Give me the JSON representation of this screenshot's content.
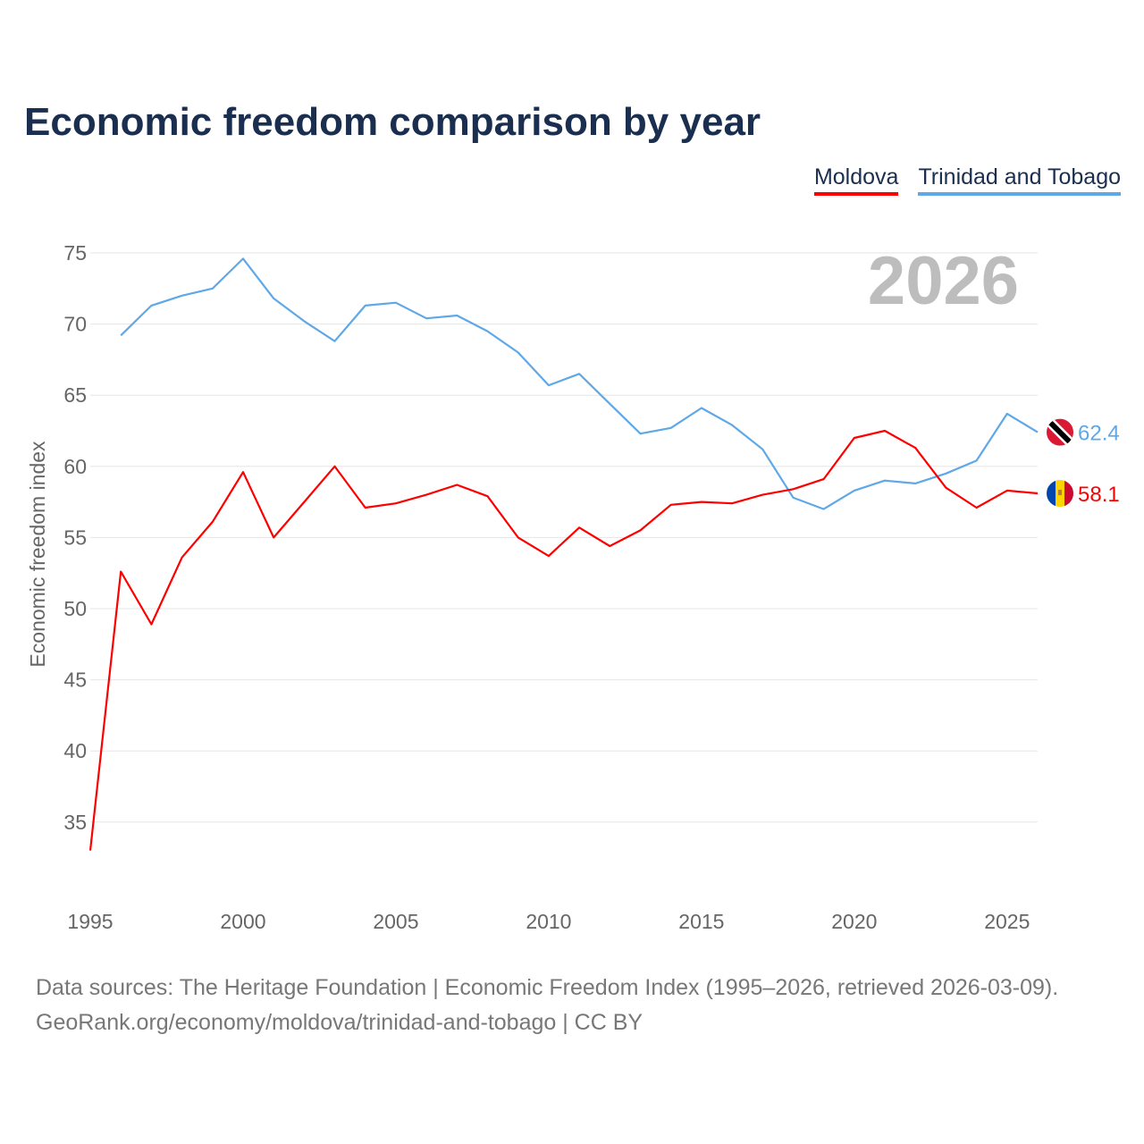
{
  "chart_data": {
    "type": "line",
    "title": "Economic freedom comparison by year",
    "ylabel": "Economic freedom index",
    "xlabel": "",
    "ylim": [
      30,
      75
    ],
    "xlim": [
      1995,
      2026
    ],
    "yticks": [
      35,
      40,
      45,
      50,
      55,
      60,
      65,
      70,
      75
    ],
    "xticks": [
      1995,
      2000,
      2005,
      2010,
      2015,
      2020,
      2025
    ],
    "grid": true,
    "legend_position": "top-right",
    "year_label": "2026",
    "x": [
      1995,
      1996,
      1997,
      1998,
      1999,
      2000,
      2001,
      2002,
      2003,
      2004,
      2005,
      2006,
      2007,
      2008,
      2009,
      2010,
      2011,
      2012,
      2013,
      2014,
      2015,
      2016,
      2017,
      2018,
      2019,
      2020,
      2021,
      2022,
      2023,
      2024,
      2025,
      2026
    ],
    "series": [
      {
        "name": "Moldova",
        "color": "#ff0000",
        "end_label": "58.1",
        "flag": "moldova-flag",
        "values": [
          33.0,
          52.6,
          48.9,
          53.6,
          56.1,
          59.6,
          55.0,
          57.5,
          60.0,
          57.1,
          57.4,
          58.0,
          58.7,
          57.9,
          55.0,
          53.7,
          55.7,
          54.4,
          55.5,
          57.3,
          57.5,
          57.4,
          58.0,
          58.4,
          59.1,
          62.0,
          62.5,
          61.3,
          58.5,
          57.1,
          58.3,
          58.1
        ]
      },
      {
        "name": "Trinidad and Tobago",
        "color": "#5fa8e8",
        "end_label": "62.4",
        "flag": "trinidad-and-tobago-flag",
        "values": [
          null,
          69.2,
          71.3,
          72.0,
          72.5,
          74.6,
          71.8,
          70.2,
          68.8,
          71.3,
          71.5,
          70.4,
          70.6,
          69.5,
          68.0,
          65.7,
          66.5,
          64.4,
          62.3,
          62.7,
          64.1,
          62.9,
          61.2,
          57.8,
          57.0,
          58.3,
          59.0,
          58.8,
          59.5,
          60.4,
          63.7,
          62.4
        ]
      }
    ]
  },
  "source_line1": "Data sources: The Heritage Foundation | Economic Freedom Index (1995–2026, retrieved 2026-03-09).",
  "source_line2": "GeoRank.org/economy/moldova/trinidad-and-tobago | CC BY"
}
